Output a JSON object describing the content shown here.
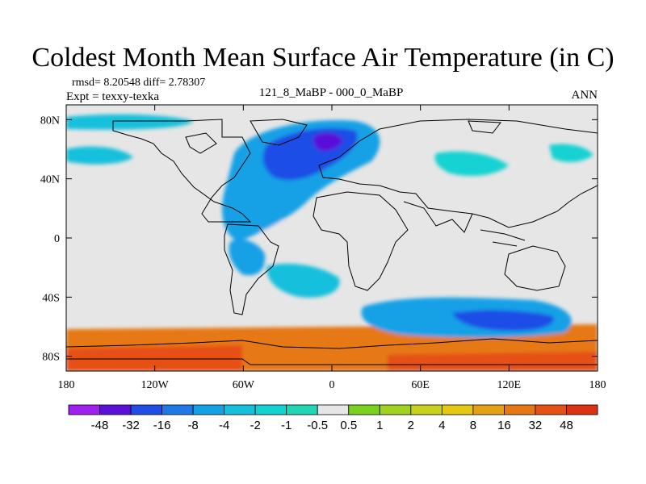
{
  "title": "Coldest Month Mean Surface Air Temperature (in C)",
  "stats_text": "rmsd= 8.20548  diff= 2.78307",
  "experiment_text": "Expt = texxy-texka",
  "case_label": "121_8_MaBP - 000_0_MaBP",
  "season": "ANN",
  "chart_data": {
    "type": "heatmap",
    "projection": "cylindrical equidistant",
    "title": "Coldest Month Mean Surface Air Temperature (in C)",
    "variable": "temperature difference",
    "units": "C",
    "x_range": [
      -180,
      180
    ],
    "y_range": [
      -90,
      90
    ],
    "x_ticks": [
      {
        "value": -180,
        "label": "180"
      },
      {
        "value": -120,
        "label": "120W"
      },
      {
        "value": -60,
        "label": "60W"
      },
      {
        "value": 0,
        "label": "0"
      },
      {
        "value": 60,
        "label": "60E"
      },
      {
        "value": 120,
        "label": "120E"
      },
      {
        "value": 180,
        "label": "180"
      }
    ],
    "y_ticks": [
      {
        "value": 80,
        "label": "80N"
      },
      {
        "value": 40,
        "label": "40N"
      },
      {
        "value": 0,
        "label": "0"
      },
      {
        "value": -40,
        "label": "40S"
      },
      {
        "value": -80,
        "label": "80S"
      }
    ],
    "colorbar": {
      "levels": [
        "-48",
        "-32",
        "-16",
        "-8",
        "-4",
        "-2",
        "-1",
        "-0.5",
        "0.5",
        "1",
        "2",
        "4",
        "8",
        "16",
        "32",
        "48"
      ],
      "colors": [
        "#a020f0",
        "#5a10d8",
        "#1e4ee6",
        "#1e78e6",
        "#14a0e6",
        "#14c0dc",
        "#14d2d2",
        "#20d6b4",
        "#e6e6e6",
        "#7ad21e",
        "#a0d21e",
        "#c8d21e",
        "#e6c814",
        "#e6a014",
        "#e67814",
        "#e65014",
        "#dc3214"
      ]
    },
    "field_regions": [
      {
        "name": "background",
        "level": 8
      },
      {
        "name": "southern ocean belt",
        "level": 14
      },
      {
        "name": "antarctic interior",
        "level": 15
      },
      {
        "name": "equatorial pacific",
        "level": 8
      },
      {
        "name": "equatorial atlantic",
        "level": 8
      },
      {
        "name": "equatorial indian",
        "level": 8
      },
      {
        "name": "north atlantic cold anomaly",
        "level": 4
      },
      {
        "name": "north atlantic core",
        "level": 2
      },
      {
        "name": "north atlantic deep core",
        "level": 1
      },
      {
        "name": "east antarctic cold anomaly",
        "level": 4
      },
      {
        "name": "east antarctic core",
        "level": 2
      },
      {
        "name": "south atlantic cold anomaly",
        "level": 5
      },
      {
        "name": "south america cold anomaly",
        "level": 4
      },
      {
        "name": "north pacific cold anomaly",
        "level": 5
      },
      {
        "name": "asia cold patches",
        "level": 6
      }
    ]
  }
}
